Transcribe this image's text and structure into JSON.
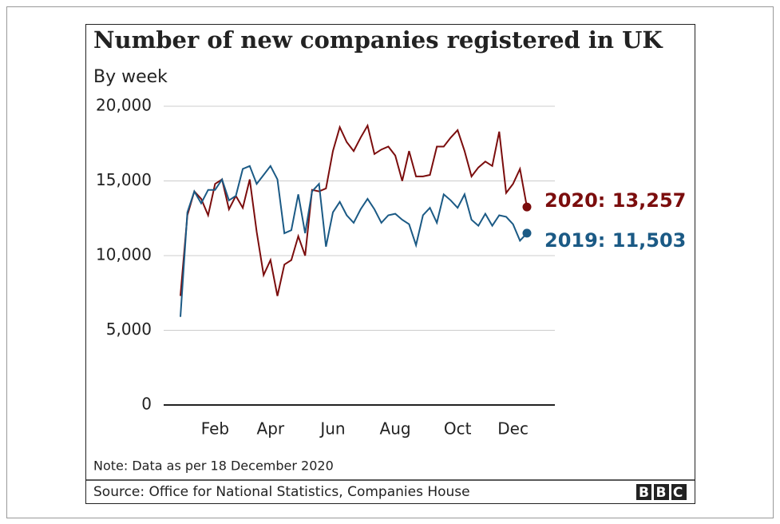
{
  "chart_data": {
    "type": "line",
    "title": "Number of new companies registered in UK",
    "subtitle": "By week",
    "categories": [
      null,
      null,
      null,
      null,
      null,
      "Feb",
      null,
      null,
      null,
      null,
      null,
      null,
      null,
      "Apr",
      null,
      null,
      null,
      null,
      null,
      null,
      null,
      null,
      "Jun",
      null,
      null,
      null,
      null,
      null,
      null,
      null,
      null,
      "Aug",
      null,
      null,
      null,
      null,
      null,
      null,
      null,
      null,
      "Oct",
      null,
      null,
      null,
      null,
      null,
      null,
      null,
      "Dec",
      null,
      null
    ],
    "series": [
      {
        "name": "2020: 13,257",
        "color": "#7b0d0d",
        "values": [
          7300,
          12700,
          14300,
          13800,
          12700,
          14800,
          15100,
          13100,
          14000,
          13200,
          15100,
          11600,
          8700,
          9700,
          7300,
          9400,
          9700,
          11300,
          10000,
          14400,
          14300,
          14500,
          17000,
          18600,
          17600,
          17000,
          17900,
          18700,
          16800,
          17100,
          17300,
          16700,
          15000,
          17000,
          15300,
          15300,
          15400,
          17300,
          17300,
          17900,
          18400,
          17000,
          15300,
          15900,
          16300,
          16000,
          18300,
          14200,
          14800,
          15800,
          13257
        ]
      },
      {
        "name": "2019: 11,503",
        "color": "#1b5a85",
        "values": [
          5900,
          12900,
          14300,
          13500,
          14400,
          14400,
          15100,
          13700,
          14000,
          15800,
          16000,
          14800,
          15400,
          16000,
          15100,
          11500,
          11700,
          14100,
          11500,
          14300,
          14800,
          10600,
          12900,
          13600,
          12700,
          12200,
          13100,
          13800,
          13100,
          12200,
          12700,
          12800,
          12400,
          12100,
          10700,
          12700,
          13200,
          12200,
          14100,
          13700,
          13200,
          14100,
          12400,
          12000,
          12800,
          12000,
          12700,
          12600,
          12100,
          11000,
          11503
        ]
      }
    ],
    "ylim": [
      0,
      20000
    ],
    "yticks": [
      0,
      {
        "value": 5000,
        "label": "5,000"
      },
      {
        "value": 10000,
        "label": "10,000"
      },
      {
        "value": 15000,
        "label": "15,000"
      },
      {
        "value": 20000,
        "label": "20,000"
      }
    ],
    "grid": true,
    "note": "Note: Data as per 18 December 2020",
    "source": "Source: Office for National Statistics, Companies House",
    "logo": "BBC"
  }
}
